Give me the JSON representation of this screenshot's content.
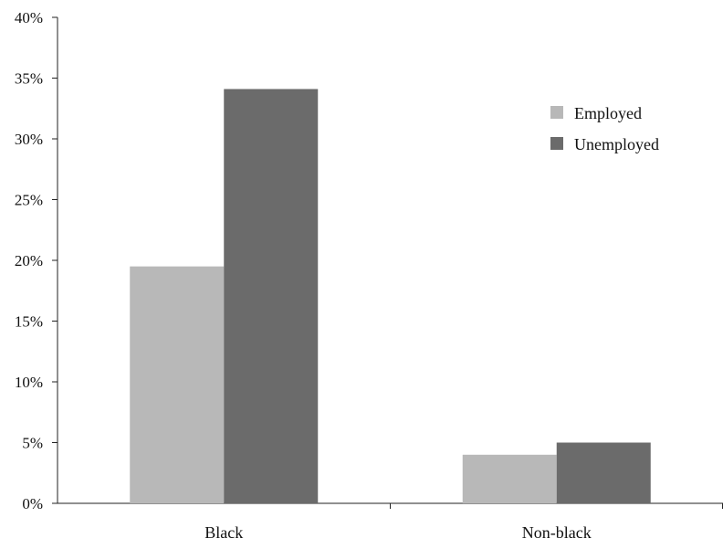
{
  "chart_data": {
    "type": "bar",
    "categories": [
      "Black",
      "Non-black"
    ],
    "series": [
      {
        "name": "Employed",
        "color": "#b8b8b8",
        "values": [
          19.5,
          4.0
        ]
      },
      {
        "name": "Unemployed",
        "color": "#6b6b6b",
        "values": [
          34.1,
          5.0
        ]
      }
    ],
    "title": "",
    "xlabel": "",
    "ylabel": "",
    "ylim": [
      0,
      40
    ],
    "yticks": [
      0,
      5,
      10,
      15,
      20,
      25,
      30,
      35,
      40
    ],
    "ytick_labels": [
      "0%",
      "5%",
      "10%",
      "15%",
      "20%",
      "25%",
      "30%",
      "35%",
      "40%"
    ],
    "grid": false,
    "legend": {
      "position": "top-right",
      "entries": [
        "Employed",
        "Unemployed"
      ]
    }
  }
}
